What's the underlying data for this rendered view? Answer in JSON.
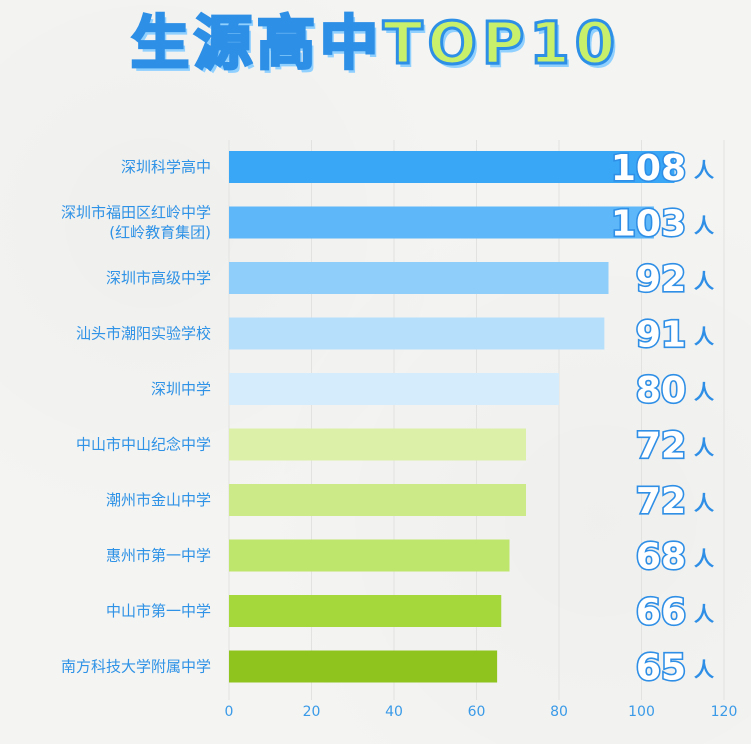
{
  "title": "生源高中TOP10",
  "unit": "人",
  "colors": {
    "title_fill": "#c9f06a",
    "title_stroke": "#2e8fe6",
    "label": "#2e92e6"
  },
  "chart_data": {
    "type": "bar",
    "orientation": "horizontal",
    "title": "生源高中TOP10",
    "categories": [
      [
        "深圳科学高中"
      ],
      [
        "深圳市福田区红岭中学",
        "(红岭教育集团)"
      ],
      [
        "深圳市高级中学"
      ],
      [
        "汕头市潮阳实验学校"
      ],
      [
        "深圳中学"
      ],
      [
        "中山市中山纪念中学"
      ],
      [
        "潮州市金山中学"
      ],
      [
        "惠州市第一中学"
      ],
      [
        "中山市第一中学"
      ],
      [
        "南方科技大学附属中学"
      ]
    ],
    "values": [
      108,
      103,
      92,
      91,
      80,
      72,
      72,
      68,
      66,
      65
    ],
    "bar_colors": [
      "#3aa6f6",
      "#5db7f8",
      "#8fcdfb",
      "#b6dffc",
      "#d5ecfc",
      "#dcf0a8",
      "#cdea88",
      "#bfe66c",
      "#a5d83a",
      "#8fc41e"
    ],
    "xlim": [
      0,
      120
    ],
    "xticks": [
      0,
      20,
      40,
      60,
      80,
      100,
      120
    ],
    "grid": true
  }
}
